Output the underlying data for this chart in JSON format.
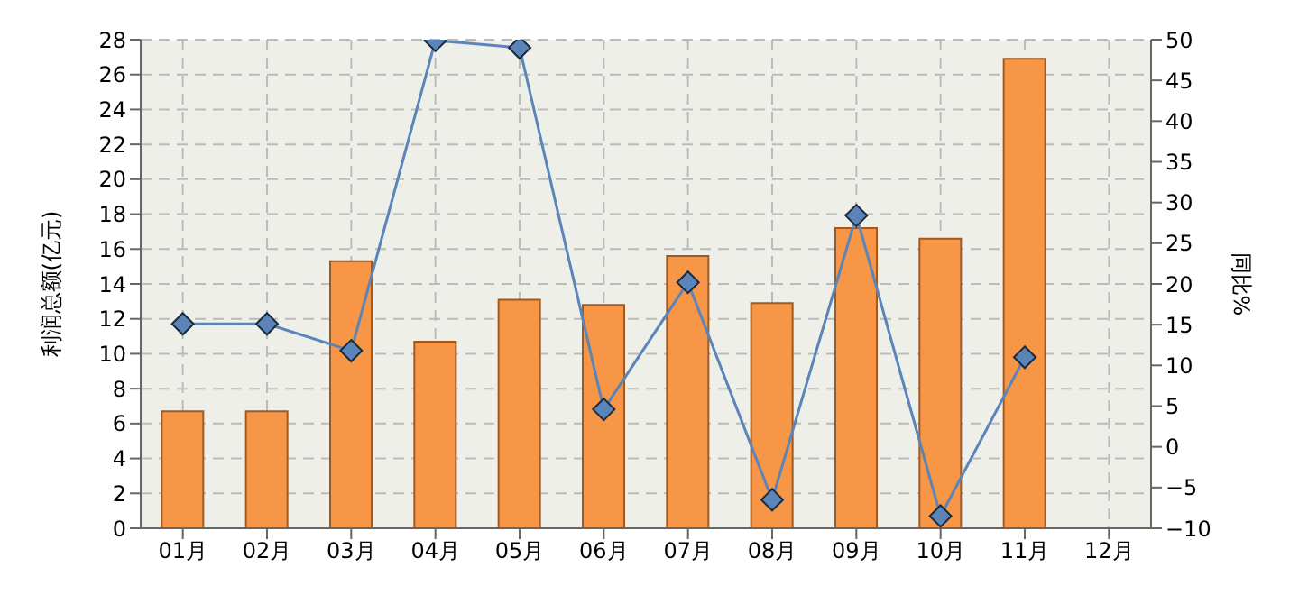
{
  "chart_data": {
    "type": "bar",
    "ylabel": "利润总额(亿元)",
    "y2label": "同比%",
    "categories": [
      "01月",
      "02月",
      "03月",
      "04月",
      "05月",
      "06月",
      "07月",
      "08月",
      "09月",
      "10月",
      "11月",
      "12月"
    ],
    "series": [
      {
        "color": "#f79646",
        "values": [
          6.7,
          6.7,
          15.3,
          10.7,
          13.1,
          12.8,
          15.6,
          12.9,
          17.2,
          16.6,
          26.9,
          null
        ]
      },
      {
        "type": "line",
        "axis": "y2",
        "color": "#5b85b8",
        "marker": "diamond",
        "values": [
          15.1,
          15.1,
          11.8,
          49.9,
          49.0,
          4.6,
          20.2,
          -6.5,
          28.4,
          -8.5,
          11.0,
          null
        ]
      }
    ],
    "ylim": [
      0,
      28
    ],
    "yticks": [
      0,
      2,
      4,
      6,
      8,
      10,
      12,
      14,
      16,
      18,
      20,
      22,
      24,
      26,
      28
    ],
    "y2lim": [
      -10,
      50
    ],
    "y2ticks": [
      -10,
      -5,
      0,
      5,
      10,
      15,
      20,
      25,
      30,
      35,
      40,
      45,
      50
    ],
    "grid": true,
    "legend": false
  }
}
